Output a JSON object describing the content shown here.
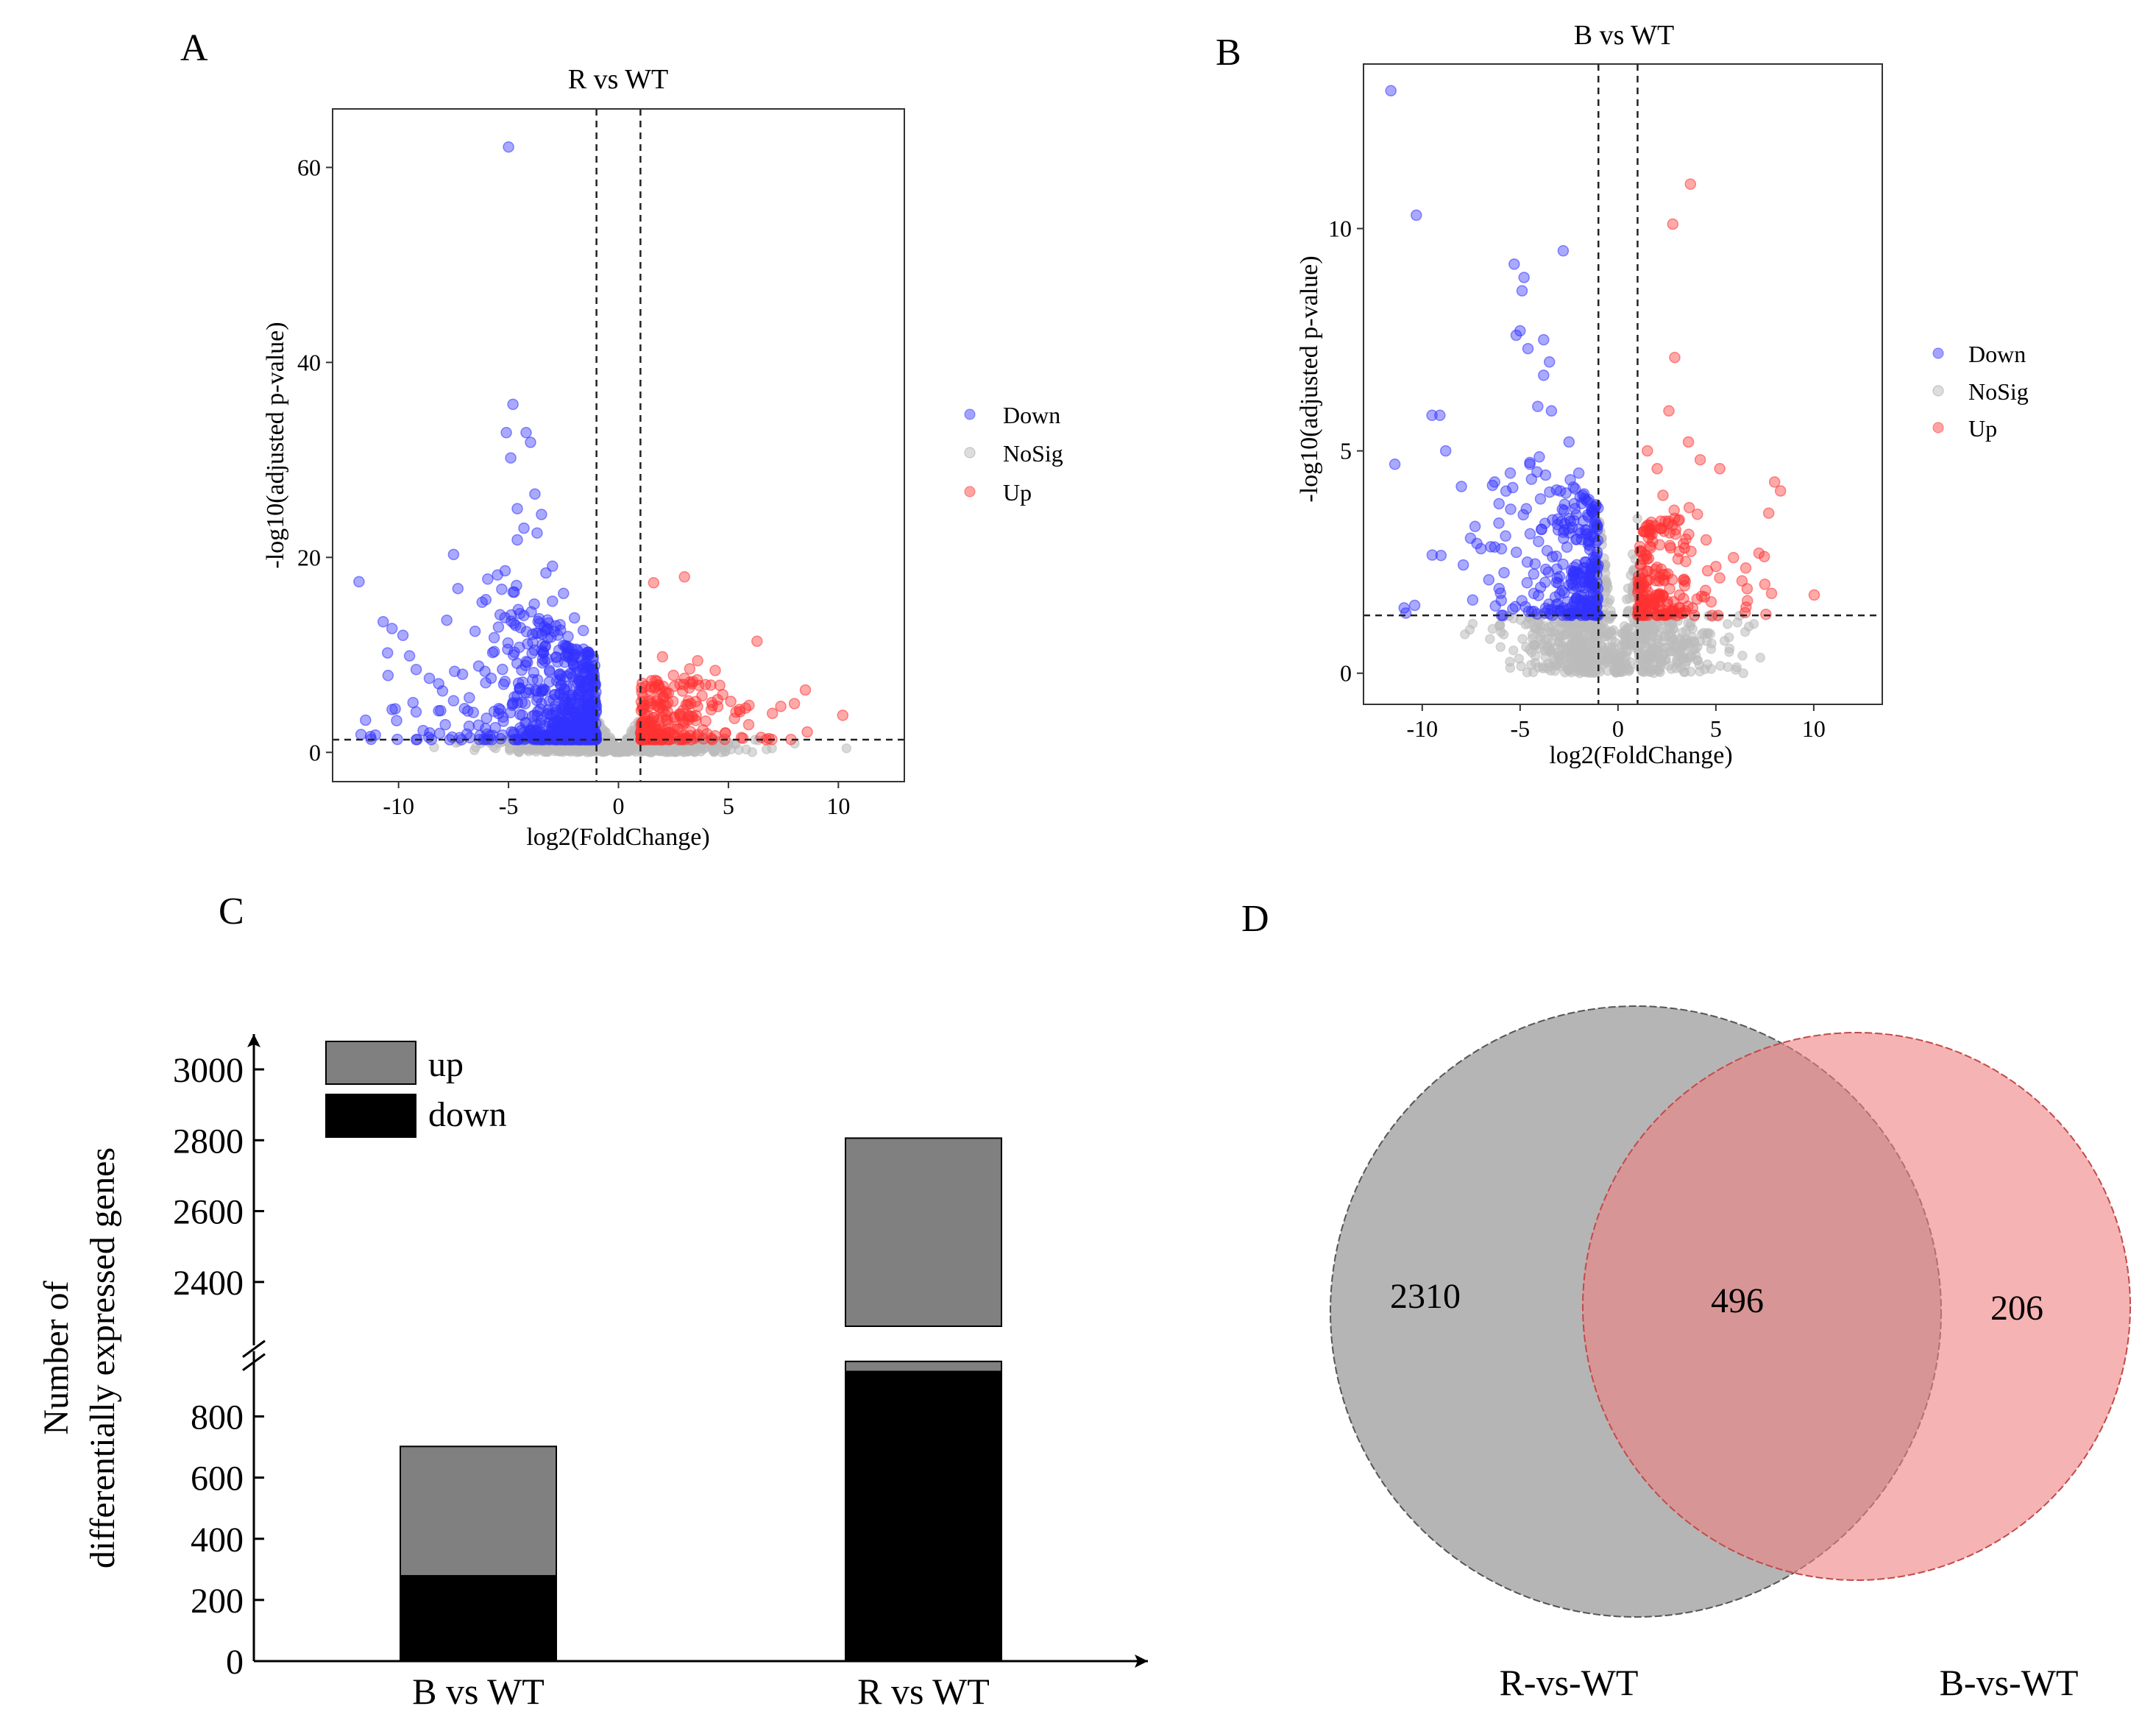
{
  "panels": {
    "A": {
      "letter": "A"
    },
    "B": {
      "letter": "B"
    },
    "C": {
      "letter": "C"
    },
    "D": {
      "letter": "D"
    }
  },
  "chart_data": [
    {
      "panel": "A",
      "type": "scatter",
      "title": "R vs WT",
      "xlabel": "log2(FoldChange)",
      "ylabel": "-log10(adjusted p-value)",
      "xlim": [
        -13.0,
        13.0
      ],
      "ylim": [
        -3.0,
        66.0
      ],
      "xticks": [
        -10,
        -5,
        0,
        5,
        10
      ],
      "yticks": [
        0,
        20,
        40,
        60
      ],
      "threshold_x": [
        -1,
        1
      ],
      "threshold_y": 1.3,
      "grid": false,
      "legend": {
        "position": "right",
        "entries": [
          "Down",
          "NoSig",
          "Up"
        ]
      },
      "colors": {
        "Down": "#3333ff",
        "NoSig": "#bbbbbb",
        "Up": "#ff3333"
      },
      "series": [
        {
          "name": "Down",
          "highlights": [
            [
              -5.0,
              62.1
            ],
            [
              -4.8,
              35.7
            ],
            [
              -4.2,
              32.8
            ],
            [
              -4.0,
              31.8
            ],
            [
              -4.9,
              30.2
            ],
            [
              -5.1,
              32.8
            ],
            [
              -3.8,
              26.5
            ],
            [
              -3.5,
              24.4
            ],
            [
              -4.6,
              25.0
            ],
            [
              -4.3,
              23.0
            ],
            [
              -4.6,
              21.8
            ],
            [
              -3.7,
              22.5
            ],
            [
              -3.0,
              19.1
            ],
            [
              -3.3,
              18.4
            ],
            [
              -2.5,
              16.3
            ],
            [
              -5.5,
              18.2
            ],
            [
              -6.2,
              15.4
            ],
            [
              -7.3,
              16.8
            ],
            [
              -11.8,
              17.5
            ],
            [
              -10.7,
              13.4
            ],
            [
              -9.8,
              12.0
            ],
            [
              -10.3,
              12.7
            ],
            [
              -9.5,
              9.9
            ],
            [
              -9.2,
              8.5
            ],
            [
              -8.6,
              7.6
            ],
            [
              -8.0,
              6.3
            ],
            [
              -7.5,
              5.3
            ],
            [
              -7.0,
              4.5
            ],
            [
              -6.6,
              4.1
            ],
            [
              -6.0,
              3.5
            ],
            [
              -11.5,
              3.3
            ],
            [
              -10.5,
              10.2
            ],
            [
              -7.5,
              20.3
            ],
            [
              -3.0,
              15.5
            ],
            [
              -2.0,
              13.8
            ],
            [
              -1.6,
              12.5
            ]
          ]
        },
        {
          "name": "Up",
          "highlights": [
            [
              3.0,
              18.0
            ],
            [
              1.6,
              17.4
            ],
            [
              6.3,
              11.4
            ],
            [
              3.6,
              9.4
            ],
            [
              4.4,
              8.4
            ],
            [
              2.5,
              7.9
            ],
            [
              3.0,
              7.6
            ],
            [
              4.2,
              6.9
            ],
            [
              8.5,
              6.4
            ],
            [
              8.0,
              5.0
            ],
            [
              7.0,
              4.0
            ],
            [
              10.2,
              3.8
            ],
            [
              2.0,
              9.8
            ],
            [
              1.5,
              5.0
            ],
            [
              5.5,
              4.4
            ],
            [
              3.8,
              5.8
            ]
          ]
        },
        {
          "name": "NoSig"
        }
      ]
    },
    {
      "panel": "B",
      "type": "scatter",
      "title": "B vs WT",
      "xlabel": "log2(FoldChange)",
      "ylabel": "-log10(adjusted p-value)",
      "xlim": [
        -13.0,
        13.5
      ],
      "ylim": [
        -0.7,
        13.7
      ],
      "xticks": [
        -10,
        -5,
        0,
        5,
        10
      ],
      "yticks": [
        0,
        5,
        10
      ],
      "threshold_x": [
        -1,
        1
      ],
      "threshold_y": 1.3,
      "grid": false,
      "legend": {
        "position": "right",
        "entries": [
          "Down",
          "NoSig",
          "Up"
        ]
      },
      "colors": {
        "Down": "#3333ff",
        "NoSig": "#bbbbbb",
        "Up": "#ff3333"
      },
      "series": [
        {
          "name": "Down",
          "highlights": [
            [
              -11.6,
              13.1
            ],
            [
              -10.3,
              10.3
            ],
            [
              -11.4,
              4.7
            ],
            [
              -9.5,
              5.8
            ],
            [
              -9.1,
              5.8
            ],
            [
              -8.8,
              5.0
            ],
            [
              -8.0,
              4.2
            ],
            [
              -7.3,
              3.3
            ],
            [
              -7.0,
              2.8
            ],
            [
              -6.6,
              2.1
            ],
            [
              -6.0,
              1.8
            ],
            [
              -5.3,
              9.2
            ],
            [
              -4.9,
              8.6
            ],
            [
              -4.8,
              8.9
            ],
            [
              -2.8,
              9.5
            ],
            [
              -5.0,
              7.7
            ],
            [
              -5.2,
              7.6
            ],
            [
              -4.6,
              7.3
            ],
            [
              -3.8,
              7.5
            ],
            [
              -3.5,
              7.0
            ],
            [
              -3.8,
              6.7
            ],
            [
              -4.1,
              6.0
            ],
            [
              -3.4,
              5.9
            ],
            [
              -2.5,
              5.2
            ],
            [
              -2.0,
              4.5
            ],
            [
              -1.8,
              4.0
            ],
            [
              -6.3,
              4.3
            ],
            [
              -5.5,
              4.5
            ],
            [
              -4.5,
              4.7
            ]
          ]
        },
        {
          "name": "Up",
          "highlights": [
            [
              3.7,
              11.0
            ],
            [
              2.8,
              10.1
            ],
            [
              2.9,
              7.1
            ],
            [
              2.6,
              5.9
            ],
            [
              3.6,
              5.2
            ],
            [
              4.2,
              4.8
            ],
            [
              5.2,
              4.6
            ],
            [
              8.0,
              4.3
            ],
            [
              8.3,
              4.1
            ],
            [
              7.7,
              3.6
            ],
            [
              7.2,
              2.7
            ],
            [
              7.5,
              2.0
            ],
            [
              6.6,
              1.9
            ],
            [
              1.5,
              5.0
            ],
            [
              2.0,
              4.6
            ],
            [
              2.3,
              4.0
            ],
            [
              5.9,
              2.6
            ],
            [
              4.5,
              3.0
            ],
            [
              5.0,
              2.4
            ]
          ]
        },
        {
          "name": "NoSig"
        }
      ]
    },
    {
      "panel": "C",
      "type": "bar",
      "stacked": true,
      "ylabel_lines": [
        "Number of",
        "differentially expressed genes"
      ],
      "categories": [
        "B vs WT",
        "R vs WT"
      ],
      "series": [
        {
          "name": "down",
          "values": [
            279,
            947
          ],
          "color": "#000000"
        },
        {
          "name": "up",
          "values": [
            423,
            1859
          ],
          "color": "#808080"
        }
      ],
      "totals": [
        702,
        2806
      ],
      "axis_break": [
        980,
        2300
      ],
      "lower_ticks": [
        0,
        200,
        400,
        600,
        800
      ],
      "upper_ticks": [
        2400,
        2600,
        2800,
        3000
      ],
      "legend": {
        "position": "top-left",
        "entries": [
          "up",
          "down"
        ]
      }
    },
    {
      "panel": "D",
      "type": "venn",
      "sets": [
        {
          "name": "R-vs-WT",
          "only": 2310,
          "color": "#999999"
        },
        {
          "name": "B-vs-WT",
          "only": 206,
          "color": "#f08080"
        }
      ],
      "intersection": 496
    }
  ]
}
